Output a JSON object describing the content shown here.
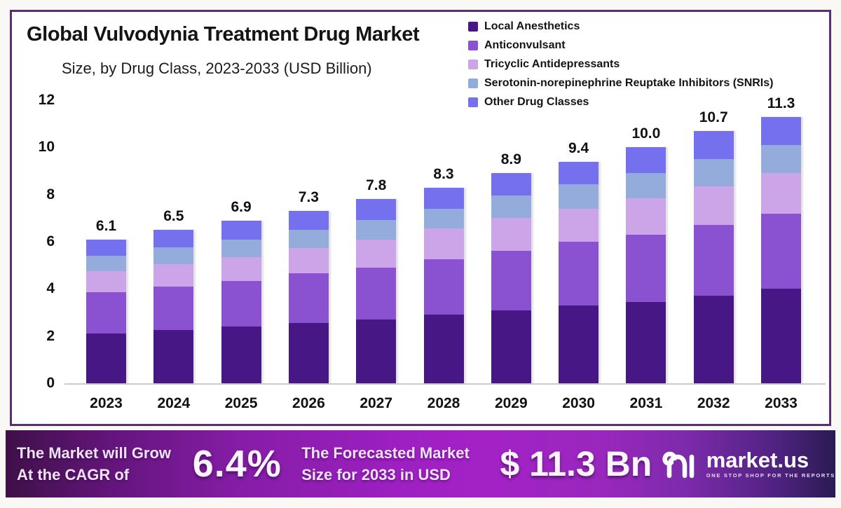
{
  "chart_data": {
    "type": "bar",
    "stacked": true,
    "title": "Global Vulvodynia Treatment Drug Market",
    "subtitle": "Size, by Drug Class, 2023-2033 (USD Billion)",
    "categories": [
      "2023",
      "2024",
      "2025",
      "2026",
      "2027",
      "2028",
      "2029",
      "2030",
      "2031",
      "2032",
      "2033"
    ],
    "series": [
      {
        "name": "Local Anesthetics",
        "color": "#471786",
        "values": [
          2.1,
          2.25,
          2.4,
          2.55,
          2.7,
          2.9,
          3.1,
          3.3,
          3.45,
          3.7,
          4.0
        ]
      },
      {
        "name": "Anticonvulsant",
        "color": "#8A52D0",
        "values": [
          1.75,
          1.85,
          1.95,
          2.1,
          2.2,
          2.35,
          2.5,
          2.7,
          2.85,
          3.0,
          3.2
        ]
      },
      {
        "name": "Tricyclic Antidepressants",
        "color": "#CCA4E8",
        "values": [
          0.9,
          0.95,
          1.0,
          1.08,
          1.2,
          1.3,
          1.4,
          1.4,
          1.55,
          1.65,
          1.7
        ]
      },
      {
        "name": "Serotonin-norepinephrine Reuptake Inhibitors (SNRIs)",
        "color": "#93ACDB",
        "values": [
          0.65,
          0.7,
          0.75,
          0.78,
          0.82,
          0.85,
          0.95,
          1.05,
          1.05,
          1.15,
          1.2
        ]
      },
      {
        "name": "Other Drug Classes",
        "color": "#7470EE",
        "values": [
          0.7,
          0.75,
          0.8,
          0.79,
          0.88,
          0.9,
          0.95,
          0.95,
          1.1,
          1.2,
          1.2
        ]
      }
    ],
    "totals_labels": [
      "6.1",
      "6.5",
      "6.9",
      "7.3",
      "7.8",
      "8.3",
      "8.9",
      "9.4",
      "10.0",
      "10.7",
      "11.3"
    ],
    "ylim": [
      0,
      12
    ],
    "yticks": [
      0,
      2,
      4,
      6,
      8,
      10,
      12
    ],
    "grid": false,
    "legend_position": "top-right"
  },
  "banner": {
    "left_line1": "The Market will Grow",
    "left_line2": "At the CAGR of",
    "cagr": "6.4%",
    "mid_line1": "The Forecasted Market",
    "mid_line2": "Size for 2033 in USD",
    "amount": "$ 11.3 Bn",
    "brand": "market.us",
    "tagline": "ONE STOP SHOP FOR THE REPORTS"
  },
  "colors": {
    "card_border": "#5B2E6E",
    "banner_gradient_start": "#3F1048",
    "banner_gradient_mid": "#A021C6",
    "banner_gradient_end": "#2A1B52",
    "axis_text": "#111111",
    "baseline": "#CBCBCB"
  }
}
